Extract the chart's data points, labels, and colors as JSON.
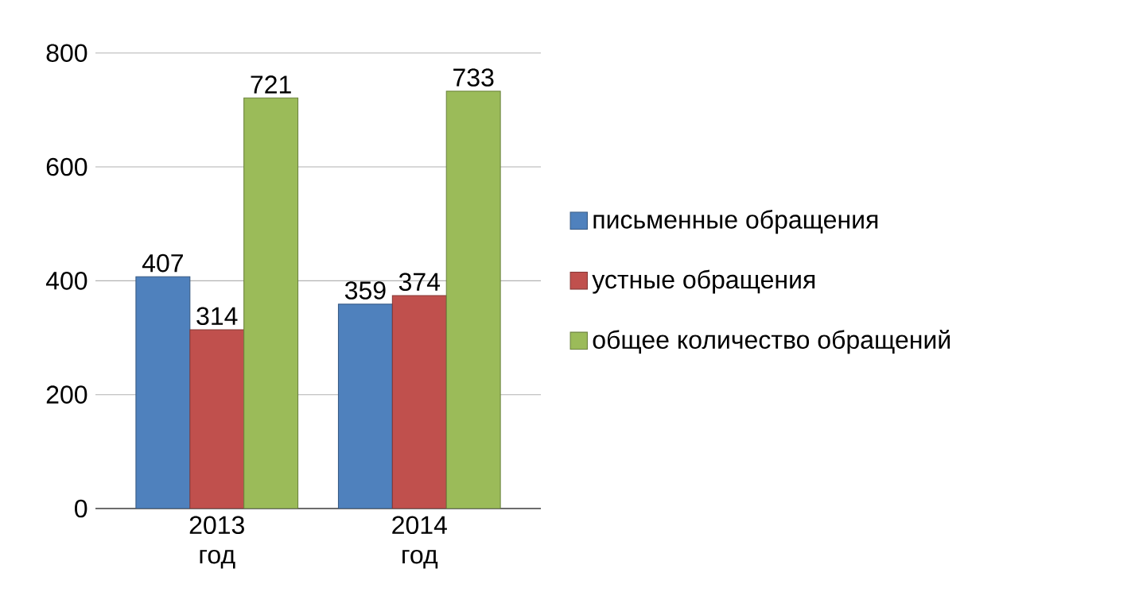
{
  "chart_data": {
    "type": "bar",
    "categories": [
      "2013 год",
      "2014 год"
    ],
    "series": [
      {
        "name": "письменные обращения",
        "color": "#4f81bd",
        "values": [
          407,
          359
        ]
      },
      {
        "name": "устные обращения",
        "color": "#c0504d",
        "values": [
          314,
          374
        ]
      },
      {
        "name": "общее количество обращений",
        "color": "#9bbb59",
        "values": [
          721,
          733
        ]
      }
    ],
    "ylim": [
      0,
      800
    ],
    "yticks": [
      0,
      200,
      400,
      600,
      800
    ],
    "grid": "y",
    "legend": "right",
    "data_labels": true
  }
}
